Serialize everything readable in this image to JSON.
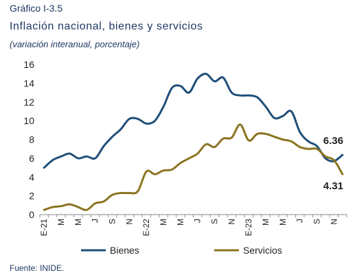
{
  "header": {
    "figure_label": "Gráfico I-3.5",
    "title": "Inflación nacional, bienes y servicios",
    "subtitle": "(variación interanual, porcentaje)"
  },
  "footer": {
    "source": "Fuente: INIDE."
  },
  "chart_data": {
    "type": "line",
    "title": "Inflación nacional, bienes y servicios",
    "subtitle": "(variación interanual, porcentaje)",
    "ylim": [
      0,
      16
    ],
    "yticks": [
      "0",
      "2",
      "4",
      "6",
      "8",
      "10",
      "12",
      "14",
      "16"
    ],
    "xtick_labels": [
      "E-21",
      "M",
      "M",
      "J",
      "S",
      "N",
      "E-22",
      "M",
      "M",
      "J",
      "S",
      "N",
      "E-23",
      "M",
      "M",
      "J",
      "S",
      "N"
    ],
    "x": [
      "2021-01",
      "2021-02",
      "2021-03",
      "2021-04",
      "2021-05",
      "2021-06",
      "2021-07",
      "2021-08",
      "2021-09",
      "2021-10",
      "2021-11",
      "2021-12",
      "2022-01",
      "2022-02",
      "2022-03",
      "2022-04",
      "2022-05",
      "2022-06",
      "2022-07",
      "2022-08",
      "2022-09",
      "2022-10",
      "2022-11",
      "2022-12",
      "2023-01",
      "2023-02",
      "2023-03",
      "2023-04",
      "2023-05",
      "2023-06",
      "2023-07",
      "2023-08",
      "2023-09",
      "2023-10",
      "2023-11",
      "2023-12"
    ],
    "legend_position": "bottom",
    "series": [
      {
        "name": "Bienes",
        "color": "#1f4e79",
        "values": [
          5.0,
          5.8,
          6.2,
          6.5,
          6.0,
          6.2,
          6.0,
          7.3,
          8.3,
          9.1,
          10.2,
          10.2,
          9.7,
          10.0,
          11.5,
          13.5,
          13.7,
          13.0,
          14.5,
          15.0,
          14.2,
          14.6,
          13.0,
          12.7,
          12.7,
          12.5,
          11.5,
          10.3,
          10.5,
          11.0,
          8.8,
          7.8,
          7.3,
          6.0,
          5.7,
          6.36
        ]
      },
      {
        "name": "Servicios",
        "color": "#8b7320",
        "values": [
          0.5,
          0.8,
          0.9,
          1.1,
          0.8,
          0.5,
          1.2,
          1.4,
          2.1,
          2.3,
          2.3,
          2.5,
          4.6,
          4.3,
          4.7,
          4.8,
          5.5,
          6.0,
          6.5,
          7.5,
          7.2,
          8.1,
          8.2,
          9.6,
          7.9,
          8.6,
          8.6,
          8.3,
          8.0,
          7.8,
          7.2,
          7.0,
          7.0,
          6.2,
          5.8,
          4.31
        ]
      }
    ],
    "end_labels": [
      "6.36",
      "4.31"
    ]
  }
}
